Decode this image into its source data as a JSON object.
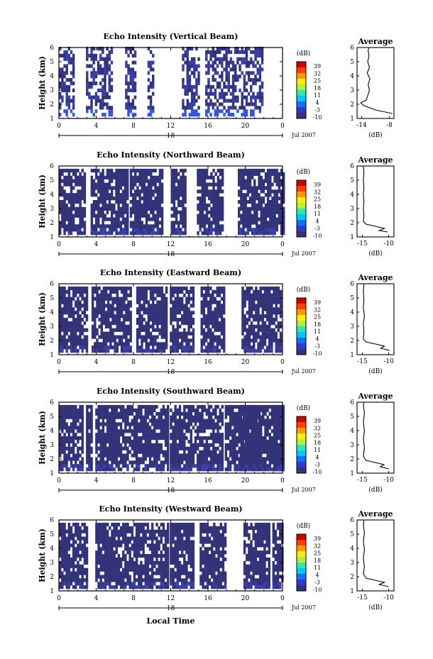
{
  "figure": {
    "bottom_xlabel": "Local Time",
    "x_ticks": [
      "0",
      "4",
      "8",
      "12",
      "16",
      "20",
      "0"
    ],
    "date_center": "18",
    "date_label": "Jul 2007",
    "y_label": "Height (km)",
    "y_ticks": [
      "1",
      "2",
      "3",
      "4",
      "5",
      "6"
    ],
    "colorbar_unit": "(dB)",
    "colorbar_ticks": [
      "39",
      "32",
      "25",
      "18",
      "11",
      "4",
      "-3",
      "-10"
    ],
    "colorbar_colors": [
      "#d00000",
      "#ff4000",
      "#ff9900",
      "#ffee00",
      "#b0f040",
      "#30e8b0",
      "#00c8ff",
      "#1070ff",
      "#2c3ccc",
      "#33337a"
    ],
    "avg_title": "Average",
    "avg_xlabel": "(dB)",
    "avg_y_ticks": [
      "1",
      "2",
      "3",
      "4",
      "5",
      "6"
    ]
  },
  "chart_data": [
    {
      "type": "heatmap",
      "title": "Echo Intensity (Vertical Beam)",
      "xlabel": "Local Time",
      "ylabel": "Height (km)",
      "xlim": [
        0,
        24
      ],
      "ylim": [
        1,
        6
      ],
      "zlim": [
        -10,
        39
      ],
      "colorbar_label": "(dB)",
      "blocks": [
        [
          0,
          1.5
        ],
        [
          2.9,
          5.6
        ],
        [
          7.1,
          8.3
        ],
        [
          9.5,
          10.2
        ],
        [
          13.2,
          15.1
        ],
        [
          15.7,
          21.7
        ]
      ],
      "average": {
        "xlabel": "(dB)",
        "xlim": [
          -15,
          -7
        ],
        "xticks": [
          -14,
          -8
        ],
        "ylim": [
          1,
          6
        ],
        "profile": [
          [
            -7.4,
            1.35
          ],
          [
            -11,
            1.6
          ],
          [
            -13.5,
            1.9
          ],
          [
            -14.2,
            2.1
          ],
          [
            -13,
            2.3
          ],
          [
            -12.6,
            2.7
          ],
          [
            -12.3,
            3.0
          ],
          [
            -12.6,
            3.4
          ],
          [
            -12.2,
            3.8
          ],
          [
            -12.8,
            4.2
          ],
          [
            -12.3,
            4.6
          ],
          [
            -12.7,
            5.0
          ],
          [
            -12.4,
            5.4
          ],
          [
            -12.6,
            5.8
          ],
          [
            -12.4,
            6.0
          ]
        ]
      }
    },
    {
      "type": "heatmap",
      "title": "Echo Intensity (Northward Beam)",
      "xlabel": "Local Time",
      "ylabel": "Height (km)",
      "xlim": [
        0,
        24
      ],
      "ylim": [
        1,
        6
      ],
      "zlim": [
        -10,
        39
      ],
      "colorbar_label": "(dB)",
      "blocks": [
        [
          0,
          2.7
        ],
        [
          3.4,
          7.3
        ],
        [
          7.6,
          11.2
        ],
        [
          12.0,
          13.5
        ],
        [
          14.8,
          17.6
        ],
        [
          19.2,
          24
        ]
      ],
      "average": {
        "xlabel": "(dB)",
        "xlim": [
          -16,
          -9
        ],
        "xticks": [
          -15,
          -10
        ],
        "ylim": [
          1,
          6
        ],
        "profile": [
          [
            -10.2,
            1.35
          ],
          [
            -11.8,
            1.45
          ],
          [
            -10.8,
            1.6
          ],
          [
            -12.5,
            1.75
          ],
          [
            -14.3,
            1.9
          ],
          [
            -14.8,
            2.1
          ],
          [
            -14.7,
            2.5
          ],
          [
            -14.8,
            3.0
          ],
          [
            -14.7,
            3.5
          ],
          [
            -14.8,
            4.0
          ],
          [
            -14.7,
            4.5
          ],
          [
            -14.8,
            5.0
          ],
          [
            -14.7,
            5.5
          ],
          [
            -14.8,
            6.0
          ]
        ]
      }
    },
    {
      "type": "heatmap",
      "title": "Echo Intensity (Eastward Beam)",
      "xlabel": "Local Time",
      "ylabel": "Height (km)",
      "xlim": [
        0,
        24
      ],
      "ylim": [
        1,
        6
      ],
      "zlim": [
        -10,
        39
      ],
      "colorbar_label": "(dB)",
      "blocks": [
        [
          0,
          3.0
        ],
        [
          3.5,
          7.8
        ],
        [
          8.3,
          11.5
        ],
        [
          11.9,
          14.5
        ],
        [
          15.2,
          17.8
        ],
        [
          19.6,
          23.8
        ]
      ],
      "average": {
        "xlabel": "(dB)",
        "xlim": [
          -16,
          -9
        ],
        "xticks": [
          -15,
          -10
        ],
        "ylim": [
          1,
          6
        ],
        "profile": [
          [
            -9.8,
            1.3
          ],
          [
            -11.5,
            1.45
          ],
          [
            -10.8,
            1.6
          ],
          [
            -12.5,
            1.75
          ],
          [
            -14.3,
            1.9
          ],
          [
            -14.8,
            2.1
          ],
          [
            -14.7,
            2.6
          ],
          [
            -14.8,
            3.2
          ],
          [
            -14.6,
            3.7
          ],
          [
            -14.8,
            4.3
          ],
          [
            -14.7,
            4.9
          ],
          [
            -14.8,
            5.5
          ],
          [
            -14.7,
            6.0
          ]
        ]
      }
    },
    {
      "type": "heatmap",
      "title": "Echo Intensity (Southward Beam)",
      "xlabel": "Local Time",
      "ylabel": "Height (km)",
      "xlim": [
        0,
        24
      ],
      "ylim": [
        1,
        6
      ],
      "zlim": [
        -10,
        39
      ],
      "colorbar_label": "(dB)",
      "blocks": [
        [
          0,
          2.6
        ],
        [
          2.9,
          3.4
        ],
        [
          3.9,
          11.7
        ],
        [
          11.9,
          17.6
        ],
        [
          17.8,
          21.5
        ],
        [
          23.0,
          24
        ]
      ],
      "extra_blocks": [
        [
          19.4,
          24
        ]
      ],
      "average": {
        "xlabel": "(dB)",
        "xlim": [
          -16,
          -9
        ],
        "xticks": [
          -15,
          -10
        ],
        "ylim": [
          1,
          6
        ],
        "profile": [
          [
            -10.0,
            1.3
          ],
          [
            -11.6,
            1.45
          ],
          [
            -10.9,
            1.6
          ],
          [
            -12.6,
            1.75
          ],
          [
            -14.3,
            1.9
          ],
          [
            -14.8,
            2.2
          ],
          [
            -14.6,
            2.8
          ],
          [
            -14.8,
            3.4
          ],
          [
            -14.6,
            4.0
          ],
          [
            -14.8,
            4.6
          ],
          [
            -14.6,
            5.2
          ],
          [
            -14.8,
            5.8
          ],
          [
            -14.7,
            6.0
          ]
        ]
      }
    },
    {
      "type": "heatmap",
      "title": "Echo Intensity (Westward Beam)",
      "xlabel": "Local Time",
      "ylabel": "Height (km)",
      "xlim": [
        0,
        24
      ],
      "ylim": [
        1,
        6
      ],
      "zlim": [
        -10,
        39
      ],
      "colorbar_label": "(dB)",
      "blocks": [
        [
          0,
          3.0
        ],
        [
          3.9,
          11.6
        ],
        [
          11.9,
          14.5
        ],
        [
          15.1,
          17.9
        ],
        [
          19.8,
          22.6
        ],
        [
          22.9,
          24
        ]
      ],
      "average": {
        "xlabel": "(dB)",
        "xlim": [
          -16,
          -9
        ],
        "xticks": [
          -15,
          -10
        ],
        "ylim": [
          1,
          6
        ],
        "profile": [
          [
            -10.0,
            1.3
          ],
          [
            -11.8,
            1.45
          ],
          [
            -10.8,
            1.6
          ],
          [
            -12.6,
            1.75
          ],
          [
            -14.3,
            1.9
          ],
          [
            -14.8,
            2.2
          ],
          [
            -14.6,
            2.7
          ],
          [
            -14.8,
            3.3
          ],
          [
            -14.6,
            3.9
          ],
          [
            -14.8,
            4.5
          ],
          [
            -14.6,
            5.1
          ],
          [
            -14.8,
            5.7
          ],
          [
            -14.7,
            6.0
          ]
        ]
      }
    }
  ]
}
